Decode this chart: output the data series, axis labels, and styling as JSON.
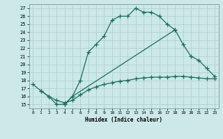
{
  "title": "",
  "xlabel": "Humidex (Indice chaleur)",
  "background_color": "#cce8e8",
  "grid_color": "#aacccc",
  "line_color": "#1a6b5a",
  "xlim": [
    -0.5,
    23.5
  ],
  "ylim": [
    14.5,
    27.5
  ],
  "xticks": [
    0,
    1,
    2,
    3,
    4,
    5,
    6,
    7,
    8,
    9,
    10,
    11,
    12,
    13,
    14,
    15,
    16,
    17,
    18,
    19,
    20,
    21,
    22,
    23
  ],
  "yticks": [
    15,
    16,
    17,
    18,
    19,
    20,
    21,
    22,
    23,
    24,
    25,
    26,
    27
  ],
  "line1_x": [
    0,
    1,
    2,
    3,
    4,
    5,
    6,
    7,
    8,
    9,
    10,
    11,
    12,
    13,
    14,
    15,
    16,
    17,
    18
  ],
  "line1_y": [
    17.5,
    16.7,
    16.0,
    15.0,
    15.0,
    16.0,
    18.0,
    21.5,
    22.5,
    23.5,
    25.5,
    26.0,
    26.0,
    27.0,
    26.5,
    26.5,
    26.0,
    25.0,
    24.3
  ],
  "line2_x": [
    4,
    5,
    18,
    19,
    20,
    21,
    22,
    23
  ],
  "line2_y": [
    15.0,
    16.0,
    24.3,
    22.5,
    21.0,
    20.5,
    19.5,
    18.5
  ],
  "line3_x": [
    1,
    2,
    3,
    4,
    5,
    6,
    7,
    8,
    9,
    10,
    11,
    12,
    13,
    14,
    15,
    16,
    17,
    18,
    19,
    20,
    21,
    22,
    23
  ],
  "line3_y": [
    16.7,
    16.0,
    15.5,
    15.2,
    15.5,
    16.2,
    16.8,
    17.2,
    17.5,
    17.7,
    17.9,
    18.0,
    18.2,
    18.3,
    18.4,
    18.4,
    18.4,
    18.5,
    18.5,
    18.4,
    18.3,
    18.2,
    18.2
  ],
  "marker": "+",
  "markersize": 4,
  "linewidth": 0.9
}
